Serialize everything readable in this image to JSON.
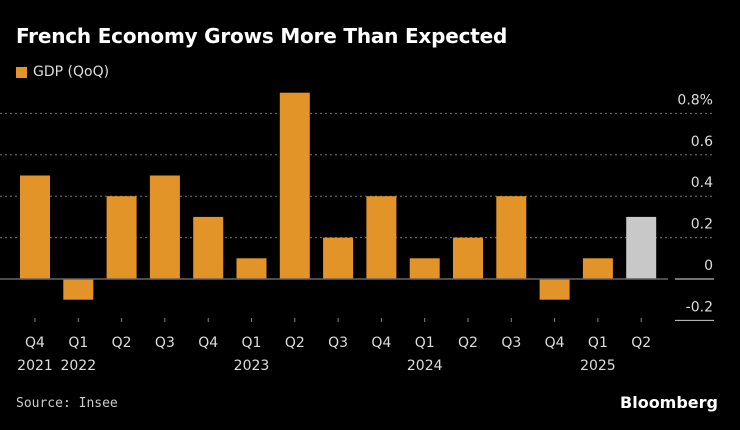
{
  "chart_data": {
    "type": "bar",
    "title": "French Economy Grows More Than Expected",
    "legend": [
      {
        "name": "GDP (QoQ)",
        "color": "#e39428"
      }
    ],
    "categories": [
      "Q4 2021",
      "Q1 2022",
      "Q2 2022",
      "Q3 2022",
      "Q4 2022",
      "Q1 2023",
      "Q2 2023",
      "Q3 2023",
      "Q4 2023",
      "Q1 2024",
      "Q2 2024",
      "Q3 2024",
      "Q4 2024",
      "Q1 2025",
      "Q2 2025"
    ],
    "x_tick_labels": [
      [
        "Q4",
        "2021"
      ],
      [
        "Q1",
        "2022"
      ],
      [
        "Q2",
        ""
      ],
      [
        "Q3",
        ""
      ],
      [
        "Q4",
        ""
      ],
      [
        "Q1",
        "2023"
      ],
      [
        "Q2",
        ""
      ],
      [
        "Q3",
        ""
      ],
      [
        "Q4",
        ""
      ],
      [
        "Q1",
        "2024"
      ],
      [
        "Q2",
        ""
      ],
      [
        "Q3",
        ""
      ],
      [
        "Q4",
        ""
      ],
      [
        "Q1",
        "2025"
      ],
      [
        "Q2",
        ""
      ]
    ],
    "series": [
      {
        "name": "GDP (QoQ)",
        "values": [
          0.5,
          -0.1,
          0.4,
          0.5,
          0.3,
          0.1,
          0.9,
          0.2,
          0.4,
          0.1,
          0.2,
          0.4,
          -0.1,
          0.1,
          0.3
        ]
      }
    ],
    "bar_colors": [
      "#e39428",
      "#e39428",
      "#e39428",
      "#e39428",
      "#e39428",
      "#e39428",
      "#e39428",
      "#e39428",
      "#e39428",
      "#e39428",
      "#e39428",
      "#e39428",
      "#e39428",
      "#e39428",
      "#c8c8c8"
    ],
    "y_ticks": [
      0.8,
      0.6,
      0.4,
      0.2,
      0,
      -0.2
    ],
    "y_tick_labels": [
      "0.8%",
      "0.6",
      "0.4",
      "0.2",
      "0",
      "-0.2"
    ],
    "ylim": [
      -0.2,
      0.8
    ],
    "y_axis_position": "right",
    "grid": true,
    "legend_position": "top-left"
  },
  "source": "Source: Insee",
  "brand": "Bloomberg"
}
